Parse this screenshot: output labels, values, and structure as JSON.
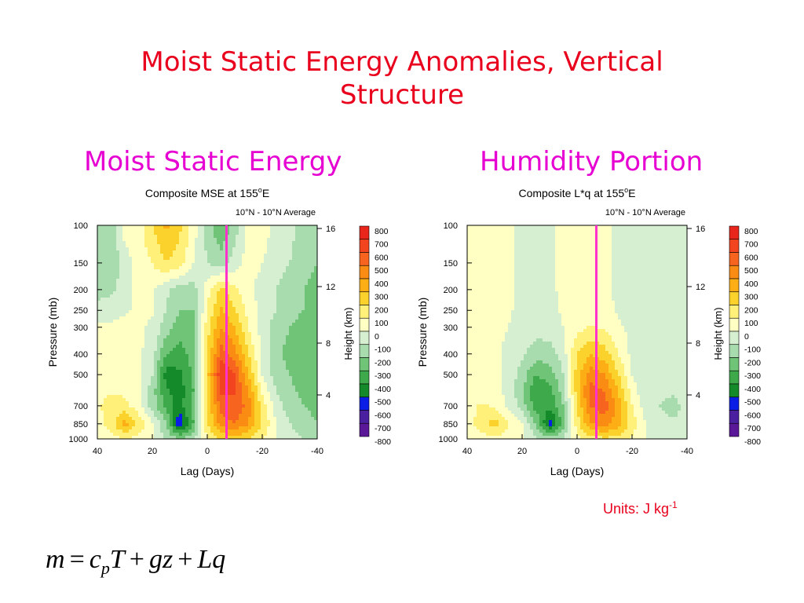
{
  "slide": {
    "title_line1": "Moist Static Energy Anomalies, Vertical",
    "title_line2": "Structure",
    "left_heading": "Moist Static Energy",
    "right_heading": "Humidity Portion",
    "units_text": "Units: J kg",
    "units_exp": "-1"
  },
  "equation": {
    "m": "m",
    "eq": "=",
    "c": "c",
    "p": "p",
    "T": "T",
    "plus1": "+",
    "gz": "gz",
    "plus2": "+",
    "Lq": "Lq"
  },
  "colors": {
    "title": "#e8001c",
    "heading": "#e600d2",
    "lag_zero_line": "#ff33cc"
  },
  "chart_data": [
    {
      "type": "heatmap",
      "title": "Composite MSE at 155°E",
      "title_main": "Composite MSE at 155",
      "title_sup": "o",
      "title_suffix": "E",
      "subtitle": "10°N - 10°N Average",
      "xlabel": "Lag (Days)",
      "ylabel": "Pressure (mb)",
      "y2label": "Height (km)",
      "x_ticks": [
        40,
        20,
        0,
        -20,
        -40
      ],
      "xlim": [
        40,
        -40
      ],
      "y_ticks": [
        100,
        150,
        200,
        250,
        300,
        400,
        500,
        700,
        850,
        1000
      ],
      "ylim": [
        1000,
        100
      ],
      "y_scale": "log",
      "y2_ticks": [
        16,
        12,
        8,
        4
      ],
      "reference_line_lag": -7,
      "colorbar_levels": [
        800,
        700,
        600,
        500,
        400,
        300,
        200,
        100,
        0,
        -100,
        -200,
        -300,
        -400,
        -500,
        -600,
        -700,
        -800
      ],
      "field": {
        "lags": [
          40,
          35,
          30,
          25,
          20,
          15,
          10,
          5,
          0,
          -5,
          -10,
          -15,
          -20,
          -25,
          -30,
          -35,
          -40
        ],
        "levels": [
          100,
          150,
          200,
          250,
          300,
          400,
          500,
          600,
          700,
          850,
          1000
        ],
        "values": [
          [
            -150,
            -150,
            50,
            50,
            200,
            320,
            220,
            50,
            -150,
            -300,
            -150,
            30,
            50,
            -30,
            -70,
            -140,
            -160
          ],
          [
            -200,
            -200,
            -50,
            50,
            100,
            200,
            150,
            0,
            -100,
            -150,
            -50,
            50,
            0,
            -50,
            -100,
            -150,
            -200
          ],
          [
            -150,
            -130,
            -20,
            20,
            20,
            -80,
            -150,
            -150,
            60,
            230,
            120,
            20,
            -40,
            -100,
            -150,
            -200,
            -250
          ],
          [
            -50,
            -40,
            -10,
            10,
            10,
            -100,
            -200,
            -200,
            100,
            320,
            210,
            60,
            -30,
            -100,
            -150,
            -200,
            -250
          ],
          [
            10,
            20,
            30,
            20,
            -20,
            -150,
            -250,
            -200,
            150,
            400,
            300,
            100,
            -50,
            -150,
            -200,
            -250,
            -280
          ],
          [
            50,
            60,
            50,
            20,
            -50,
            -300,
            -350,
            -250,
            200,
            550,
            450,
            200,
            -20,
            -180,
            -230,
            -280,
            -300
          ],
          [
            60,
            70,
            60,
            20,
            -100,
            -450,
            -420,
            -280,
            250,
            700,
            600,
            300,
            0,
            -150,
            -200,
            -250,
            -300
          ],
          [
            60,
            90,
            80,
            20,
            -150,
            -380,
            -450,
            -300,
            220,
            620,
            600,
            400,
            80,
            -100,
            -180,
            -220,
            -260
          ],
          [
            80,
            150,
            130,
            40,
            -150,
            -330,
            -450,
            -250,
            200,
            550,
            600,
            450,
            150,
            -50,
            -150,
            -200,
            -230
          ],
          [
            50,
            150,
            350,
            180,
            20,
            -200,
            -600,
            -300,
            180,
            450,
            500,
            400,
            200,
            0,
            -100,
            -150,
            -200
          ],
          [
            20,
            50,
            100,
            50,
            0,
            -100,
            -200,
            -100,
            100,
            200,
            250,
            200,
            100,
            0,
            -50,
            -100,
            -120
          ]
        ]
      }
    },
    {
      "type": "heatmap",
      "title": "Composite L*q at 155°E",
      "title_main": "Composite L*q at 155",
      "title_sup": "o",
      "title_suffix": "E",
      "subtitle": "10°N - 10°N Average",
      "xlabel": "Lag (Days)",
      "ylabel": "Pressure (mb)",
      "y2label": "Height (km)",
      "x_ticks": [
        40,
        20,
        0,
        -20,
        -40
      ],
      "xlim": [
        40,
        -40
      ],
      "y_ticks": [
        100,
        150,
        200,
        250,
        300,
        400,
        500,
        700,
        850,
        1000
      ],
      "ylim": [
        1000,
        100
      ],
      "y_scale": "log",
      "y2_ticks": [
        16,
        12,
        8,
        4
      ],
      "reference_line_lag": -7,
      "colorbar_levels": [
        800,
        700,
        600,
        500,
        400,
        300,
        200,
        100,
        0,
        -100,
        -200,
        -300,
        -400,
        -500,
        -600,
        -700,
        -800
      ],
      "field": {
        "lags": [
          40,
          35,
          30,
          25,
          20,
          15,
          10,
          5,
          0,
          -5,
          -10,
          -15,
          -20,
          -25,
          -30,
          -35,
          -40
        ],
        "levels": [
          100,
          150,
          200,
          250,
          300,
          400,
          500,
          600,
          700,
          850,
          1000
        ],
        "values": [
          [
            20,
            20,
            20,
            20,
            -20,
            -20,
            -20,
            20,
            20,
            20,
            20,
            -20,
            -20,
            -20,
            -20,
            -20,
            -20
          ],
          [
            20,
            20,
            20,
            20,
            -20,
            -20,
            -20,
            20,
            20,
            20,
            20,
            -20,
            -20,
            -20,
            -20,
            -20,
            -20
          ],
          [
            20,
            20,
            20,
            20,
            -20,
            -20,
            -20,
            20,
            20,
            20,
            20,
            -20,
            -20,
            -20,
            -20,
            -20,
            -20
          ],
          [
            20,
            20,
            20,
            10,
            -20,
            -20,
            -20,
            10,
            30,
            40,
            30,
            -10,
            -20,
            -20,
            -20,
            -20,
            -20
          ],
          [
            20,
            20,
            20,
            0,
            -30,
            -60,
            -50,
            0,
            60,
            110,
            80,
            10,
            -20,
            -20,
            -20,
            -20,
            -20
          ],
          [
            20,
            30,
            20,
            -20,
            -80,
            -150,
            -150,
            -50,
            200,
            300,
            250,
            100,
            -30,
            -50,
            -30,
            -20,
            -20
          ],
          [
            30,
            40,
            30,
            -30,
            -150,
            -300,
            -250,
            -100,
            250,
            450,
            400,
            200,
            0,
            -80,
            -60,
            -50,
            -40
          ],
          [
            40,
            60,
            40,
            -30,
            -180,
            -380,
            -350,
            -150,
            250,
            550,
            500,
            300,
            50,
            -80,
            -80,
            -80,
            -60
          ],
          [
            60,
            110,
            90,
            -20,
            -150,
            -350,
            -380,
            -200,
            200,
            500,
            550,
            350,
            100,
            -50,
            -100,
            -150,
            -50
          ],
          [
            50,
            150,
            250,
            100,
            0,
            -200,
            -550,
            -250,
            150,
            400,
            450,
            350,
            150,
            0,
            -50,
            -80,
            -60
          ],
          [
            20,
            50,
            80,
            40,
            0,
            -80,
            -150,
            -80,
            80,
            150,
            180,
            150,
            80,
            0,
            -20,
            -30,
            -30
          ]
        ]
      }
    }
  ]
}
